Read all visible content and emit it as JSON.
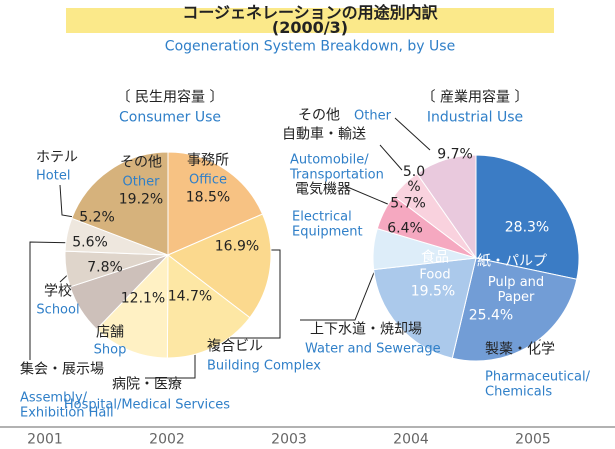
{
  "title": "コージェネレーションの用途別内訳(2000/3)",
  "subtitle": "Cogeneration System Breakdown, by Use",
  "chart_data": [
    {
      "type": "pie",
      "title": "〔 民生用容量 〕",
      "subtitle": "Consumer Use",
      "categories": [
        "事務所",
        "複合ビル",
        "病院・医療",
        "店舗",
        "学校",
        "集会・展示場",
        "ホテル",
        "その他"
      ],
      "categories_en": [
        "Office",
        "Building Complex",
        "Hospital/Medical Services",
        "Shop",
        "School",
        "Assembly/\nExhibition Hall",
        "Hotel",
        "Other"
      ],
      "values": [
        18.5,
        16.9,
        14.7,
        12.1,
        7.8,
        5.6,
        5.2,
        19.2
      ],
      "value_labels": [
        "18.5%",
        "16.9%",
        "14.7%",
        "12.1%",
        "7.8%",
        "5.6%",
        "5.2%",
        "19.2%"
      ],
      "colors": [
        "#f7c283",
        "#fbd98e",
        "#fde7a4",
        "#fff1c4",
        "#cdc0ba",
        "#dfd5cb",
        "#eee7de",
        "#d6b27c"
      ]
    },
    {
      "type": "pie",
      "title": "〔 産業用容量 〕",
      "subtitle": "Industrial Use",
      "categories": [
        "製薬・化学",
        "紙・パルプ",
        "食品",
        "上下水道・焼却場",
        "電気機器",
        "自動車・輸送",
        "その他"
      ],
      "categories_en": [
        "Pharmaceutical/\nChemicals",
        "Pulp and\nPaper",
        "Food",
        "Water and Sewerage",
        "Electrical\nEquipment",
        "Automobile/\nTransportation",
        "Other"
      ],
      "values": [
        28.3,
        25.4,
        19.5,
        6.4,
        5.7,
        5.0,
        9.7
      ],
      "value_labels": [
        "28.3%",
        "25.4%",
        "19.5%",
        "6.4%",
        "5.7%",
        "5.0\n%",
        "9.7%"
      ],
      "colors": [
        "#3b7cc5",
        "#729dd6",
        "#abc9eb",
        "#ddedf9",
        "#f5a8c0",
        "#f9d2de",
        "#e9c9dd"
      ]
    }
  ],
  "footer": [
    "2001",
    "2002",
    "2003",
    "2004",
    "2005"
  ]
}
